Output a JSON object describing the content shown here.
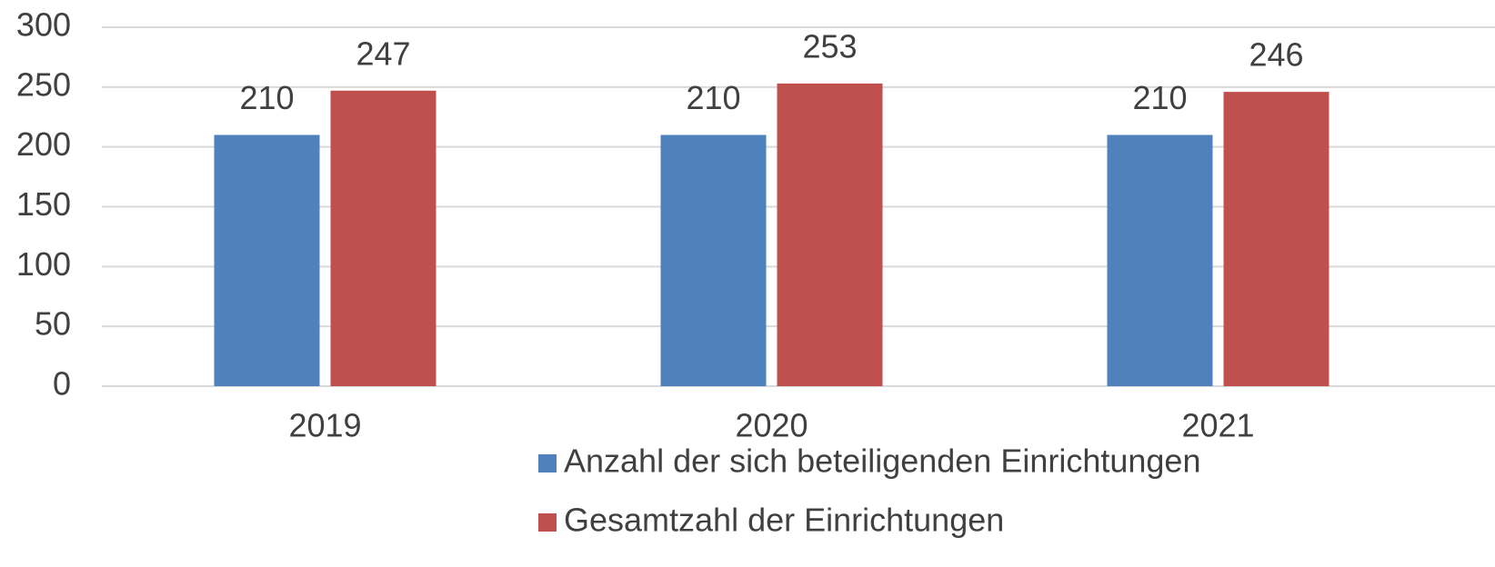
{
  "chart_data": {
    "type": "bar",
    "categories": [
      "2019",
      "2020",
      "2021"
    ],
    "series": [
      {
        "name": "Anzahl der sich beteiligenden Einrichtungen",
        "color": "#4f81bd",
        "values": [
          210,
          210,
          210
        ]
      },
      {
        "name": "Gesamtzahl der Einrichtungen",
        "color": "#c0504d",
        "values": [
          247,
          253,
          246
        ]
      }
    ],
    "ylim": [
      0,
      300
    ],
    "yticks": [
      0,
      50,
      100,
      150,
      200,
      250,
      300
    ],
    "grid": true,
    "legend": "bottom"
  }
}
